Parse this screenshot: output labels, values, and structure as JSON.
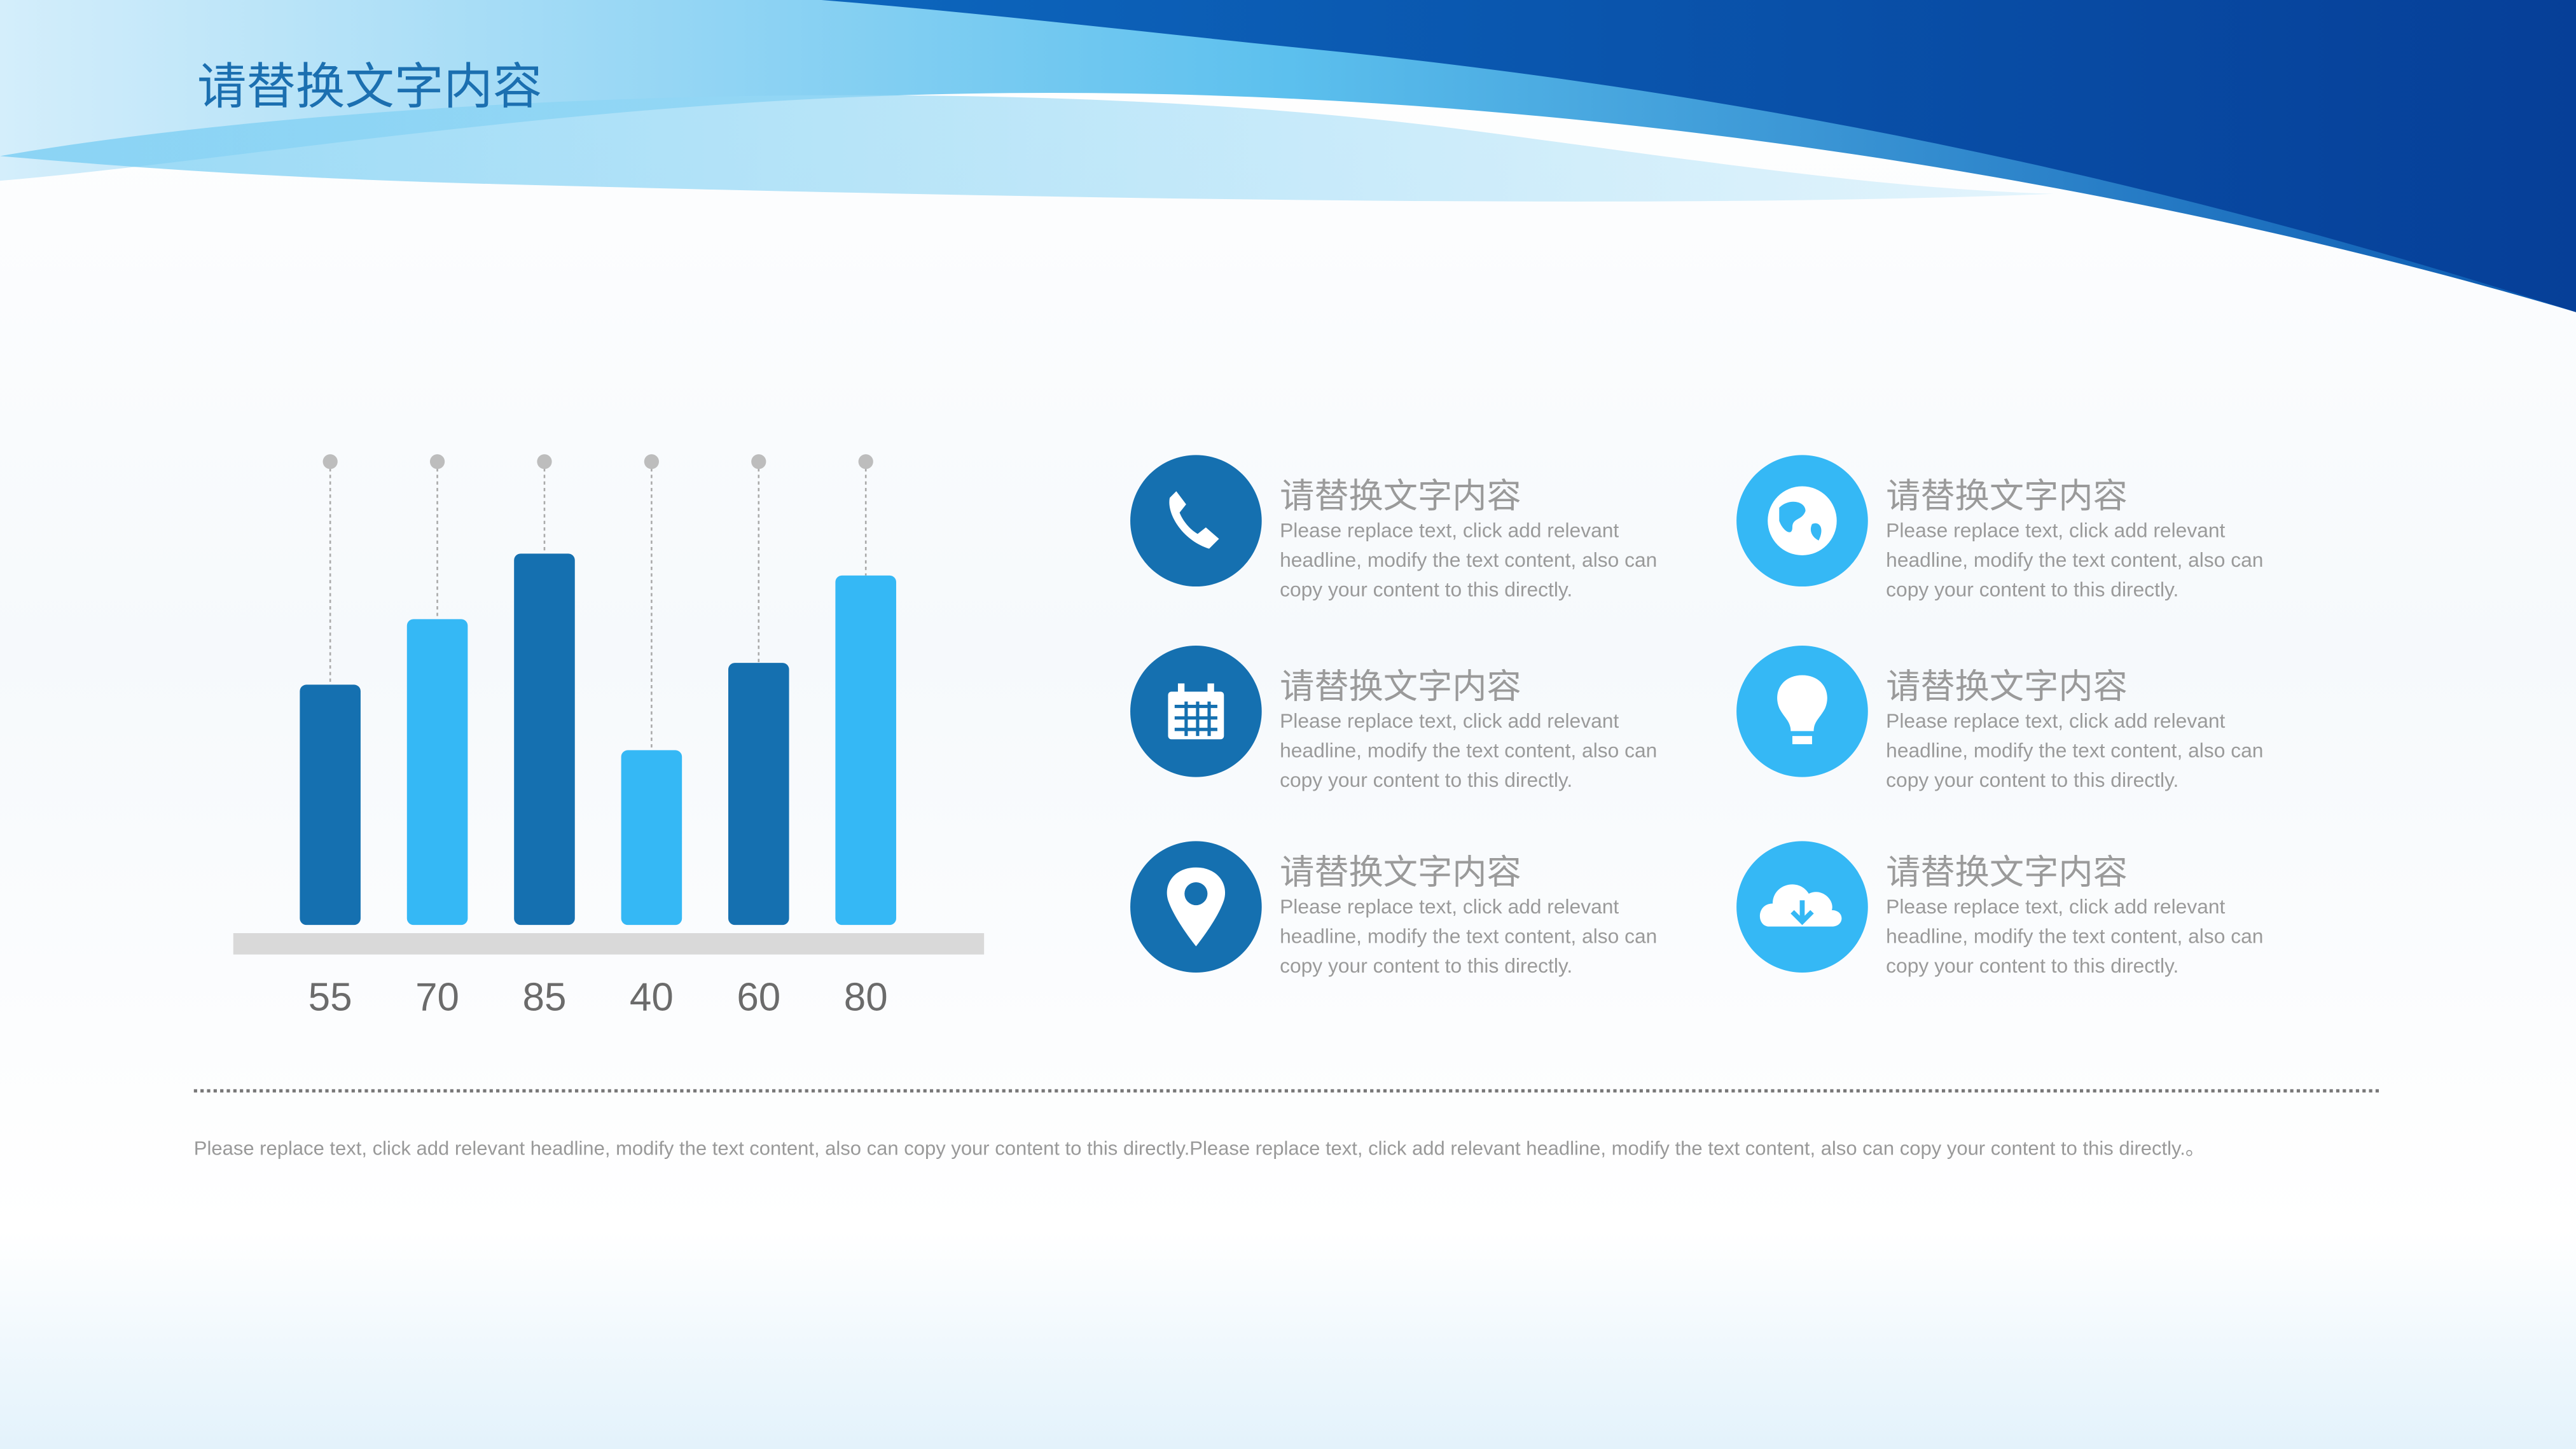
{
  "header": {
    "title": "请替换文字内容"
  },
  "chart_data": {
    "type": "bar",
    "values": [
      55,
      70,
      85,
      40,
      60,
      80
    ],
    "colors": [
      "#1570b0",
      "#35b8f5",
      "#1570b0",
      "#35b8f5",
      "#1570b0",
      "#35b8f5"
    ]
  },
  "items": [
    {
      "title": "请替换文字内容",
      "text": "Please replace text, click add relevant headline, modify the text content, also can copy your content to this directly."
    },
    {
      "title": "请替换文字内容",
      "text": "Please replace text, click add relevant headline, modify the text content, also can copy your content to this directly."
    },
    {
      "title": "请替换文字内容",
      "text": "Please replace text, click add relevant headline, modify the text content, also can copy your content to this directly."
    },
    {
      "title": "请替换文字内容",
      "text": "Please replace text, click add relevant headline, modify the text content, also can copy your content to this directly."
    },
    {
      "title": "请替换文字内容",
      "text": "Please replace text, click add relevant headline, modify the text content, also can copy your content to this directly."
    },
    {
      "title": "请替换文字内容",
      "text": "Please replace text, click add relevant headline, modify the text content, also can copy your content to this directly."
    }
  ],
  "footer": {
    "text": "Please replace text, click add relevant headline, modify the text content, also can copy your content to this directly.Please replace text, click add relevant headline, modify the text content, also can copy your content to this directly.。"
  }
}
